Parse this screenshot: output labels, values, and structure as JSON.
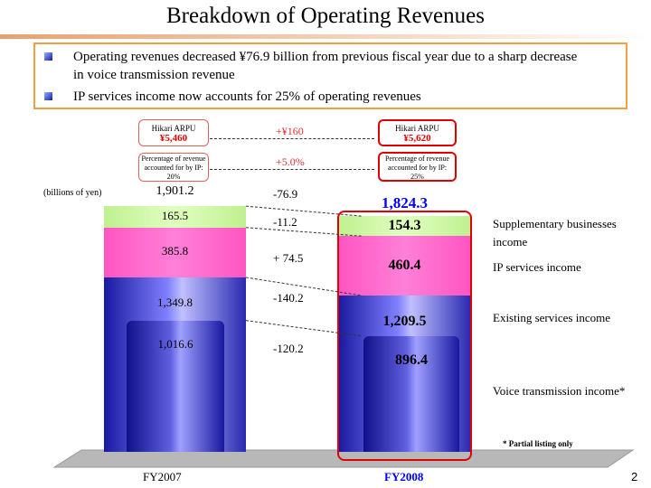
{
  "title": "Breakdown of Operating Revenues",
  "summary": [
    "Operating revenues decreased ¥76.9 billion from previous fiscal year due to a sharp decrease in voice transmission revenue",
    "IP services income now accounts for 25% of operating revenues"
  ],
  "callouts": {
    "arpu_label": "Hikari ARPU",
    "arpu_fy2007": "¥5,460",
    "arpu_fy2008": "¥5,620",
    "arpu_change": "+¥160",
    "ip_share_label": "Percentage of revenue accounted for by IP:",
    "ip_share_fy2007": "20%",
    "ip_share_fy2008": "25%",
    "ip_share_change": "+5.0%"
  },
  "unit_label": "(billions of yen)",
  "footnote": "* Partial listing only",
  "page_number": "2",
  "colors": {
    "supplementary": "#ccff99",
    "ip": "#ff66cc",
    "existing": "#3333cc",
    "highlight": "#e00000",
    "fy2008_text": "#0000ff"
  },
  "chart_data": {
    "type": "bar",
    "stacked": true,
    "categories": [
      "FY2007",
      "FY2008"
    ],
    "totals": [
      "1,901.2",
      "1,824.3"
    ],
    "series": [
      {
        "name": "Existing services income",
        "values": [
          1349.8,
          1209.5
        ],
        "labels": [
          "1,349.8",
          "1,209.5"
        ]
      },
      {
        "name": "IP services income",
        "values": [
          385.8,
          460.4
        ],
        "labels": [
          "385.8",
          "460.4"
        ]
      },
      {
        "name": "Supplementary businesses income",
        "values": [
          165.5,
          154.3
        ],
        "labels": [
          "165.5",
          "154.3"
        ]
      }
    ],
    "subset": {
      "name": "Voice transmission income*",
      "values": [
        1016.6,
        896.4
      ],
      "labels": [
        "1,016.6",
        "896.4"
      ]
    },
    "changes": [
      "-76.9",
      "-11.2",
      "+ 74.5",
      "-140.2",
      "-120.2"
    ]
  }
}
